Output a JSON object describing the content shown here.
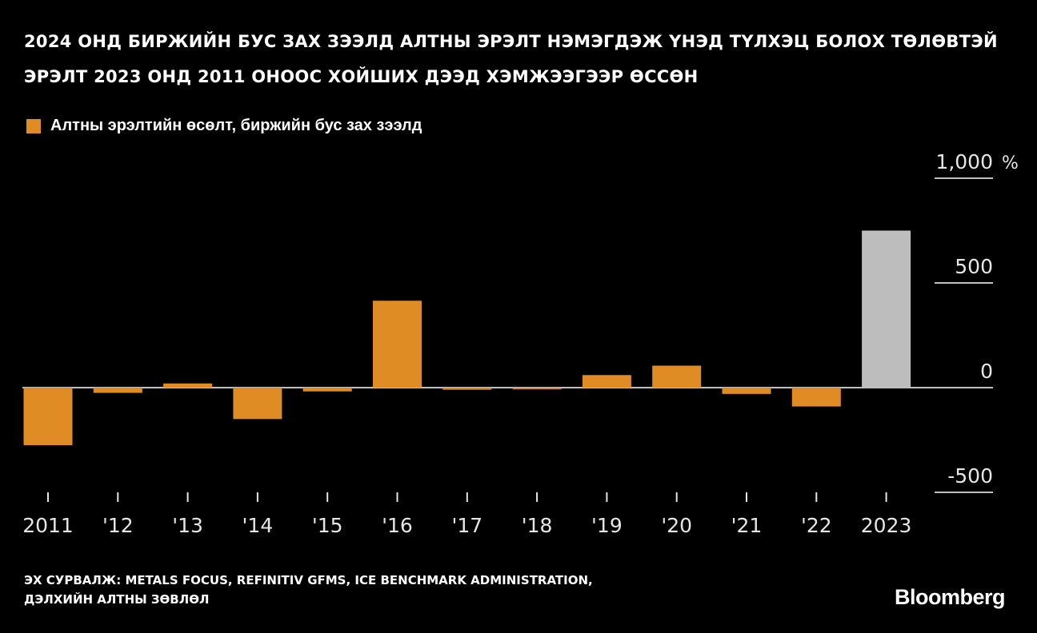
{
  "title_lines": [
    "2024 ОНД БИРЖИЙН БУС ЗАХ ЗЭЭЛД АЛТНЫ ЭРЭЛТ НЭМЭГДЭЖ ҮНЭД ТҮЛХЭЦ БОЛОХ ТӨЛӨВТЭЙ",
    "ЭРЭЛТ 2023 ОНД 2011 ОНООС ХОЙШИХ ДЭЭД ХЭМЖЭЭГЭЭР ӨССӨН"
  ],
  "legend": {
    "label": "Алтны эрэлтийн өсөлт, биржийн бус зах зээлд",
    "color": "#e08c24"
  },
  "source_lines": [
    "ЭХ СУРВАЛЖ: METALS FOCUS, REFINITIV GFMS, ICE BENCHMARK ADMINISTRATION,",
    "ДЭЛХИЙН АЛТНЫ ЗӨВЛӨЛ"
  ],
  "brand": "Bloomberg",
  "chart_data": {
    "type": "bar",
    "categories": [
      "2011",
      "'12",
      "'13",
      "'14",
      "'15",
      "'16",
      "'17",
      "'18",
      "'19",
      "'20",
      "'21",
      "'22",
      "2023"
    ],
    "series": [
      {
        "name": "Алтны эрэлтийн өсөлт, биржийн бус зах зээлд",
        "values": [
          -275,
          -25,
          20,
          -150,
          -18,
          415,
          -10,
          -8,
          60,
          105,
          -30,
          -90,
          750
        ],
        "colors": [
          "#e08c24",
          "#e08c24",
          "#e08c24",
          "#e08c24",
          "#e08c24",
          "#e08c24",
          "#e08c24",
          "#e08c24",
          "#e08c24",
          "#e08c24",
          "#e08c24",
          "#e08c24",
          "#bdbdbd"
        ]
      }
    ],
    "y_ticks": [
      {
        "value": 1000,
        "label": "1,000"
      },
      {
        "value": 500,
        "label": "500"
      },
      {
        "value": 0,
        "label": "0"
      },
      {
        "value": -500,
        "label": "-500"
      }
    ],
    "y_unit": "%",
    "ylim": [
      -500,
      1000
    ],
    "grid": false,
    "axis_side": "right",
    "legend_position": "top-left"
  }
}
